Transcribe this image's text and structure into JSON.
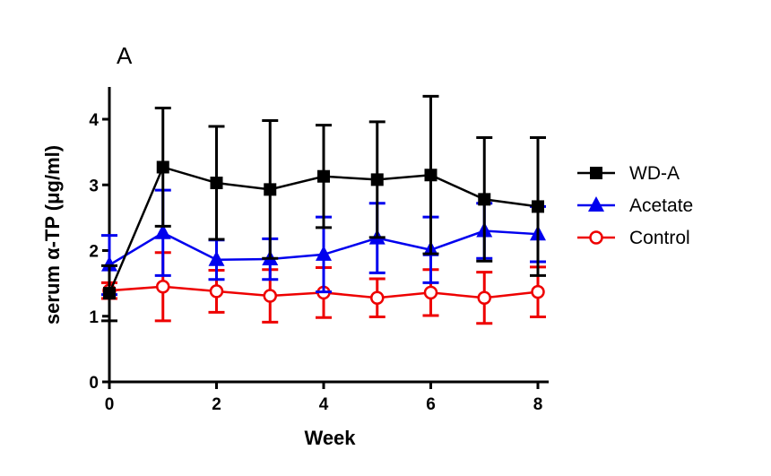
{
  "chart_data": {
    "type": "line",
    "panel_label": "A",
    "xlabel": "Week",
    "ylabel": "serum α-TP (μg/ml)",
    "xlim": [
      0,
      8
    ],
    "ylim": [
      0,
      4.5
    ],
    "x_ticks": [
      0,
      2,
      4,
      6,
      8
    ],
    "y_ticks": [
      0,
      1,
      2,
      3,
      4
    ],
    "grid": false,
    "legend_position": "right",
    "x": [
      0,
      1,
      2,
      3,
      4,
      5,
      6,
      7,
      8
    ],
    "series": [
      {
        "name": "WD-A",
        "color": "#000000",
        "marker": "square",
        "values": [
          1.35,
          3.27,
          3.03,
          2.93,
          3.13,
          3.08,
          3.15,
          2.78,
          2.67
        ],
        "error": [
          0.42,
          0.9,
          0.86,
          1.05,
          0.78,
          0.88,
          1.2,
          0.94,
          1.05
        ]
      },
      {
        "name": "Acetate",
        "color": "#0000ee",
        "marker": "triangle",
        "values": [
          1.78,
          2.27,
          1.86,
          1.87,
          1.94,
          2.19,
          2.01,
          2.3,
          2.25
        ],
        "error": [
          0.45,
          0.65,
          0.3,
          0.31,
          0.57,
          0.53,
          0.5,
          0.42,
          0.42
        ]
      },
      {
        "name": "Control",
        "color": "#ee0000",
        "marker": "circle",
        "values": [
          1.39,
          1.45,
          1.38,
          1.31,
          1.36,
          1.28,
          1.36,
          1.28,
          1.37
        ],
        "error": [
          0.12,
          0.52,
          0.32,
          0.4,
          0.38,
          0.29,
          0.35,
          0.39,
          0.38
        ]
      }
    ]
  }
}
